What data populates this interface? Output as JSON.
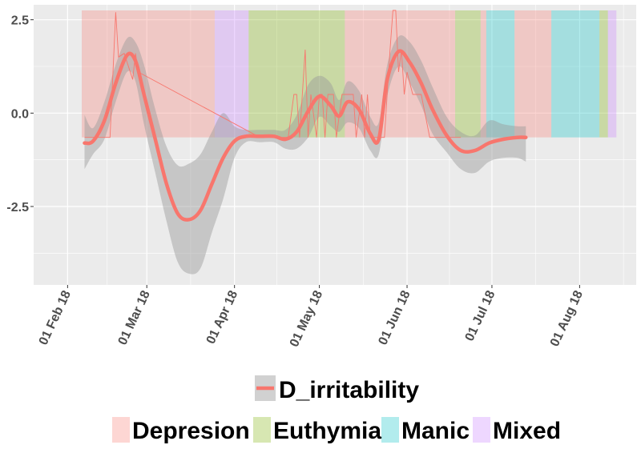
{
  "chart_data": {
    "type": "line",
    "x_axis": {
      "kind": "date",
      "range": [
        "2018-01-20",
        "2018-08-21"
      ],
      "ticks": [
        {
          "date": "2018-02-01",
          "label": "01 Feb 18"
        },
        {
          "date": "2018-03-01",
          "label": "01 Mar 18"
        },
        {
          "date": "2018-04-01",
          "label": "01 Apr 18"
        },
        {
          "date": "2018-05-01",
          "label": "01 May 18"
        },
        {
          "date": "2018-06-01",
          "label": "01 Jun 18"
        },
        {
          "date": "2018-07-01",
          "label": "01 Jul 18"
        },
        {
          "date": "2018-08-01",
          "label": "01 Aug 18"
        }
      ]
    },
    "y_axis": {
      "range": [
        -4.6,
        2.9
      ],
      "ticks": [
        {
          "value": 2.5,
          "label": "2.5"
        },
        {
          "value": 0,
          "label": "0.0"
        },
        {
          "value": -2.5,
          "label": "-2.5"
        }
      ]
    },
    "grid": true,
    "legend_position": "bottom",
    "series": [
      {
        "name": "D_irritability",
        "color": "#f8766d",
        "smooth": {
          "x": [
            "2018-02-07",
            "2018-02-10",
            "2018-02-14",
            "2018-02-18",
            "2018-02-22",
            "2018-02-25",
            "2018-02-28",
            "2018-03-04",
            "2018-03-08",
            "2018-03-12",
            "2018-03-16",
            "2018-03-20",
            "2018-03-24",
            "2018-03-28",
            "2018-04-01",
            "2018-04-05",
            "2018-04-10",
            "2018-04-15",
            "2018-04-19",
            "2018-04-23",
            "2018-04-27",
            "2018-05-01",
            "2018-05-05",
            "2018-05-08",
            "2018-05-11",
            "2018-05-15",
            "2018-05-19",
            "2018-05-22",
            "2018-05-25",
            "2018-05-29",
            "2018-06-02",
            "2018-06-06",
            "2018-06-10",
            "2018-06-15",
            "2018-06-20",
            "2018-06-25",
            "2018-06-30",
            "2018-07-05",
            "2018-07-10",
            "2018-07-13"
          ],
          "y": [
            -0.8,
            -0.75,
            -0.2,
            0.8,
            1.55,
            1.4,
            0.5,
            -0.7,
            -1.9,
            -2.7,
            -2.85,
            -2.6,
            -1.9,
            -1.2,
            -0.75,
            -0.62,
            -0.62,
            -0.62,
            -0.7,
            -0.5,
            0.05,
            0.45,
            0.2,
            -0.08,
            0.3,
            0.1,
            -0.55,
            -0.7,
            0.9,
            1.65,
            1.35,
            0.8,
            0.1,
            -0.6,
            -1.0,
            -1.0,
            -0.8,
            -0.7,
            -0.65,
            -0.65
          ],
          "ci_upper": [
            -0.05,
            -0.4,
            0.3,
            1.3,
            2.0,
            1.9,
            1.3,
            0.1,
            -0.9,
            -1.4,
            -1.35,
            -1.1,
            -0.5,
            0.0,
            -0.35,
            -0.45,
            -0.45,
            -0.45,
            -0.45,
            -0.05,
            0.75,
            1.0,
            0.8,
            0.35,
            0.85,
            0.6,
            -0.1,
            -0.25,
            1.3,
            2.05,
            1.9,
            1.4,
            0.7,
            -0.1,
            -0.5,
            -0.6,
            -0.2,
            -0.3,
            -0.35,
            -0.35
          ],
          "ci_lower": [
            -1.5,
            -1.1,
            -0.7,
            0.3,
            1.1,
            0.85,
            -0.3,
            -1.6,
            -2.9,
            -4.0,
            -4.3,
            -4.15,
            -3.2,
            -2.3,
            -1.2,
            -0.78,
            -0.78,
            -0.78,
            -0.95,
            -0.95,
            -0.65,
            -0.1,
            -0.35,
            -0.5,
            -0.25,
            -0.4,
            -1.0,
            -1.1,
            0.45,
            1.25,
            0.8,
            0.2,
            -0.55,
            -1.05,
            -1.5,
            -1.6,
            -1.3,
            -1.2,
            -1.2,
            -1.3
          ]
        },
        "raw": {
          "x": [
            "2018-02-07",
            "2018-02-10",
            "2018-02-14",
            "2018-02-16",
            "2018-02-18",
            "2018-02-19",
            "2018-02-21",
            "2018-02-24",
            "2018-02-25",
            "2018-02-26",
            "2018-04-10",
            "2018-04-20",
            "2018-04-22",
            "2018-04-23",
            "2018-04-24",
            "2018-04-26",
            "2018-04-27",
            "2018-04-28",
            "2018-04-30",
            "2018-05-01",
            "2018-05-02",
            "2018-05-03",
            "2018-05-04",
            "2018-05-06",
            "2018-05-07",
            "2018-05-09",
            "2018-05-10",
            "2018-05-13",
            "2018-05-14",
            "2018-05-16",
            "2018-05-17",
            "2018-05-18",
            "2018-05-19",
            "2018-05-20",
            "2018-05-21",
            "2018-05-23",
            "2018-05-24",
            "2018-05-26",
            "2018-05-27",
            "2018-05-28",
            "2018-05-29",
            "2018-05-30",
            "2018-05-31",
            "2018-06-01",
            "2018-06-03",
            "2018-06-06",
            "2018-06-09",
            "2018-06-12",
            "2018-06-14",
            "2018-06-20"
          ],
          "y": [
            -0.65,
            -0.65,
            -0.65,
            -0.65,
            2.7,
            1.5,
            1.6,
            0.9,
            1.6,
            1.1,
            -0.65,
            -0.65,
            0.5,
            0.5,
            -0.65,
            1.7,
            -0.65,
            0.5,
            -0.65,
            0.5,
            0.5,
            -0.65,
            0.5,
            0.5,
            -0.65,
            0.5,
            0.5,
            0.5,
            -0.65,
            0.5,
            -0.65,
            0.5,
            -0.65,
            -0.65,
            -0.65,
            -0.65,
            -0.65,
            1.7,
            2.75,
            2.75,
            1.1,
            1.7,
            0.5,
            1.1,
            0.5,
            0.5,
            -0.65,
            -0.65,
            -0.65,
            -0.65
          ]
        }
      }
    ],
    "background_states": {
      "y_range": [
        -0.65,
        2.75
      ],
      "periods": [
        {
          "state": "Depresion",
          "start": "2018-02-06",
          "end": "2018-03-25"
        },
        {
          "state": "Mixed",
          "start": "2018-03-25",
          "end": "2018-04-06"
        },
        {
          "state": "Euthymia",
          "start": "2018-04-06",
          "end": "2018-05-10"
        },
        {
          "state": "Depresion",
          "start": "2018-05-10",
          "end": "2018-06-18"
        },
        {
          "state": "Euthymia",
          "start": "2018-06-18",
          "end": "2018-06-27"
        },
        {
          "state": "Depresion",
          "start": "2018-06-27",
          "end": "2018-06-29"
        },
        {
          "state": "Manic",
          "start": "2018-06-29",
          "end": "2018-07-09"
        },
        {
          "state": "Depresion",
          "start": "2018-07-09",
          "end": "2018-07-22"
        },
        {
          "state": "Manic",
          "start": "2018-07-22",
          "end": "2018-08-08"
        },
        {
          "state": "Euthymia",
          "start": "2018-08-08",
          "end": "2018-08-11"
        },
        {
          "state": "Mixed",
          "start": "2018-08-11",
          "end": "2018-08-14"
        }
      ]
    },
    "legend": {
      "line_entry": "D_irritability",
      "fill_entries": [
        {
          "label": "Depresion",
          "color": "#f8766d"
        },
        {
          "label": "Euthymia",
          "color": "#7cae00"
        },
        {
          "label": "Manic",
          "color": "#00bfc4"
        },
        {
          "label": "Mixed",
          "color": "#c77cff"
        }
      ]
    }
  }
}
